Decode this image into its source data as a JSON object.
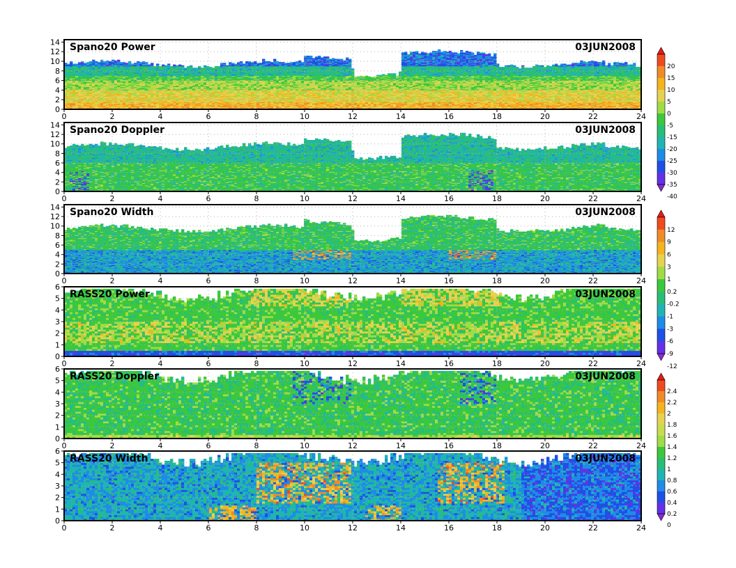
{
  "figure": {
    "date": "03JUN2008",
    "x_ticks": [
      "0",
      "2",
      "4",
      "6",
      "8",
      "10",
      "12",
      "14",
      "16",
      "18",
      "20",
      "22",
      "24"
    ]
  },
  "colors": {
    "frame": "#000000",
    "grid": "#b0b0b0",
    "bg": "#ffffff"
  },
  "chart_data": [
    {
      "type": "heatmap",
      "title": "Spano20  Power",
      "date": "03JUN2008",
      "xlim": [
        0,
        24
      ],
      "ylim": [
        0,
        14.5
      ],
      "yticks": [
        0,
        2,
        4,
        6,
        8,
        10,
        12,
        14
      ],
      "colorbar": "power",
      "field": "power",
      "top_height_km": 9.5
    },
    {
      "type": "heatmap",
      "title": "Spano20  Doppler",
      "date": "03JUN2008",
      "xlim": [
        0,
        24
      ],
      "ylim": [
        0,
        14.5
      ],
      "yticks": [
        0,
        2,
        4,
        6,
        8,
        10,
        12,
        14
      ],
      "colorbar": "none",
      "field": "doppler",
      "top_height_km": 9.5
    },
    {
      "type": "heatmap",
      "title": "Spano20  Width",
      "date": "03JUN2008",
      "xlim": [
        0,
        24
      ],
      "ylim": [
        0,
        14.5
      ],
      "yticks": [
        0,
        2,
        4,
        6,
        8,
        10,
        12,
        14
      ],
      "colorbar": "sym",
      "field": "width",
      "top_height_km": 9.5
    },
    {
      "type": "heatmap",
      "title": "RASS20  Power",
      "date": "03JUN2008",
      "xlim": [
        0,
        24
      ],
      "ylim": [
        0,
        6
      ],
      "yticks": [
        0,
        1,
        2,
        3,
        4,
        5,
        6
      ],
      "colorbar": "none",
      "field": "rasspower",
      "top_height_km": 5.6
    },
    {
      "type": "heatmap",
      "title": "RASS20  Doppler",
      "date": "03JUN2008",
      "xlim": [
        0,
        24
      ],
      "ylim": [
        0,
        6
      ],
      "yticks": [
        0,
        1,
        2,
        3,
        4,
        5,
        6
      ],
      "colorbar": "rass",
      "field": "rassdoppler",
      "top_height_km": 5.6
    },
    {
      "type": "heatmap",
      "title": "RASS20  Width",
      "date": "03JUN2008",
      "xlim": [
        0,
        24
      ],
      "ylim": [
        0,
        6
      ],
      "yticks": [
        0,
        1,
        2,
        3,
        4,
        5,
        6
      ],
      "colorbar": "none",
      "field": "rasswidth",
      "top_height_km": 5.6
    }
  ],
  "colorbars": {
    "power": {
      "labels": [
        "20",
        "15",
        "10",
        "5",
        "0",
        "-5",
        "-15",
        "-20",
        "-25",
        "-30",
        "-35",
        "-40"
      ],
      "colors": [
        "#e8191c",
        "#f04b1e",
        "#f08c28",
        "#f5b41e",
        "#e6d250",
        "#a0dc46",
        "#3cc83c",
        "#28be78",
        "#20b4b4",
        "#1e8ce6",
        "#1e50e6",
        "#6432e6",
        "#8c28d2"
      ]
    },
    "sym": {
      "labels": [
        "12",
        "9",
        "6",
        "3",
        "1",
        "0.2",
        "-0.2",
        "-1",
        "-3",
        "-6",
        "-9",
        "-12"
      ],
      "colors": [
        "#e8191c",
        "#f04b1e",
        "#f08c28",
        "#f5b41e",
        "#e6d250",
        "#a0dc46",
        "#3cc83c",
        "#28be78",
        "#20b4b4",
        "#1e8ce6",
        "#1e50e6",
        "#6432e6",
        "#8c28d2"
      ]
    },
    "rass": {
      "labels": [
        "2.4",
        "2.2",
        "2",
        "1.8",
        "1.6",
        "1.4",
        "1.2",
        "1",
        "0.8",
        "0.6",
        "0.4",
        "0.2",
        "0"
      ],
      "colors": [
        "#e8191c",
        "#f04b1e",
        "#f08c28",
        "#f5b41e",
        "#e6d250",
        "#c8dc50",
        "#a0dc46",
        "#3cc83c",
        "#28be78",
        "#20b4b4",
        "#1e8ce6",
        "#1e50e6",
        "#6432e6",
        "#8c28d2"
      ]
    }
  }
}
